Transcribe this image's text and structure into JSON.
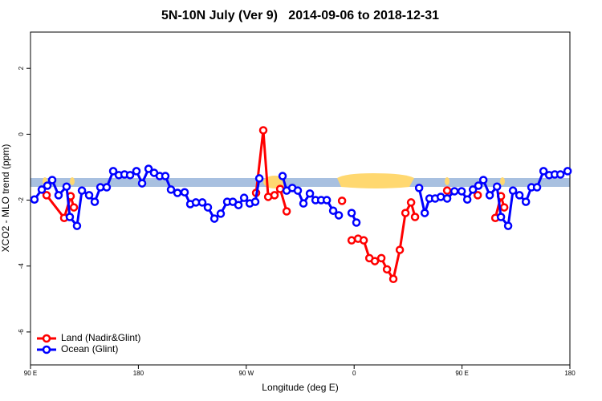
{
  "chart_data": {
    "type": "line",
    "title": "5N-10N July (Ver 9)   2014-09-06 to 2018-12-31",
    "x_label": "Longitude (deg E)",
    "y_label": "XCO2 - MLO trend (ppm)",
    "xlim": [
      90,
      540
    ],
    "ylim": [
      -7.0,
      3.1
    ],
    "xticks": [
      {
        "value": 90,
        "label": "90 E"
      },
      180,
      {
        "value": 270,
        "label": "90 W"
      },
      {
        "value": 360,
        "label": "0"
      },
      {
        "value": 450,
        "label": "90 E"
      },
      {
        "value": 540,
        "label": "180"
      }
    ],
    "yticks": [
      -6,
      -4,
      -2,
      0,
      2
    ],
    "legend": "bottom-left",
    "series": [
      {
        "name": "Land (Nadir&Glint)",
        "color": "#ff0000",
        "x": [
          103.4,
          118.1,
          123.5,
          126.2,
          null,
          278.2,
          284.2,
          288.3,
          293.6,
          298.3,
          303.7,
          null,
          349.9,
          null,
          357.9,
          363.3,
          368.0,
          372.7,
          377.3,
          382.7,
          387.4,
          392.7,
          398.1,
          402.8,
          407.5,
          410.8,
          null,
          437.6,
          null,
          463.1,
          null,
          477.8,
          482.5,
          485.2
        ],
        "values": [
          -1.85,
          -2.54,
          -1.88,
          -2.22,
          null,
          -1.78,
          0.12,
          -1.9,
          -1.85,
          -1.66,
          -2.34,
          null,
          -2.02,
          null,
          -3.22,
          -3.17,
          -3.22,
          -3.76,
          -3.85,
          -3.76,
          -4.1,
          -4.39,
          -3.51,
          -2.39,
          -2.07,
          -2.51,
          null,
          -1.71,
          null,
          -1.85,
          null,
          -2.54,
          -1.88,
          -2.22
        ]
      },
      {
        "name": "Ocean (Glint)",
        "color": "#0000ff",
        "x": [
          93.3,
          99.4,
          104.1,
          108.1,
          113.4,
          120.1,
          122.8,
          128.8,
          132.9,
          138.9,
          143.6,
          148.3,
          153.6,
          159.0,
          163.7,
          168.4,
          173.1,
          178.4,
          183.1,
          188.5,
          193.1,
          197.8,
          202.5,
          207.2,
          212.6,
          218.6,
          223.3,
          228.0,
          233.3,
          238.0,
          243.4,
          248.7,
          254.1,
          258.8,
          263.5,
          268.2,
          272.9,
          277.5,
          280.9,
          null,
          300.3,
          303.7,
          308.4,
          313.0,
          317.7,
          323.1,
          327.8,
          332.5,
          337.2,
          342.5,
          347.2,
          null,
          357.9,
          361.9,
          null,
          414.2,
          418.9,
          422.9,
          427.6,
          432.3,
          437.6,
          443.7,
          449.7,
          454.4,
          459.1,
          463.7,
          467.8,
          473.1,
          479.2,
          482.5,
          488.5,
          492.5,
          497.9,
          503.3,
          507.9,
          512.6,
          518.0,
          522.7,
          527.4,
          532.1,
          538.1
        ],
        "values": [
          -1.98,
          -1.68,
          -1.56,
          -1.39,
          -1.85,
          -1.59,
          -2.51,
          -2.78,
          -1.71,
          -1.85,
          -2.05,
          -1.61,
          -1.61,
          -1.12,
          -1.24,
          -1.22,
          -1.24,
          -1.12,
          -1.49,
          -1.05,
          -1.17,
          -1.27,
          -1.27,
          -1.68,
          -1.78,
          -1.76,
          -2.12,
          -2.07,
          -2.07,
          -2.22,
          -2.56,
          -2.41,
          -2.05,
          -2.05,
          -2.15,
          -1.93,
          -2.1,
          -2.05,
          -1.34,
          null,
          -1.27,
          -1.71,
          -1.63,
          -1.71,
          -2.1,
          -1.8,
          -2.0,
          -2.0,
          -2.0,
          -2.32,
          -2.46,
          null,
          -2.39,
          -2.68,
          null,
          -1.63,
          -2.39,
          -1.95,
          -1.95,
          -1.9,
          -1.95,
          -1.73,
          -1.73,
          -1.98,
          -1.68,
          -1.56,
          -1.39,
          -1.85,
          -1.59,
          -2.51,
          -2.78,
          -1.71,
          -1.85,
          -2.05,
          -1.61,
          -1.61,
          -1.12,
          -1.24,
          -1.22,
          -1.22,
          -1.12
        ]
      }
    ]
  }
}
